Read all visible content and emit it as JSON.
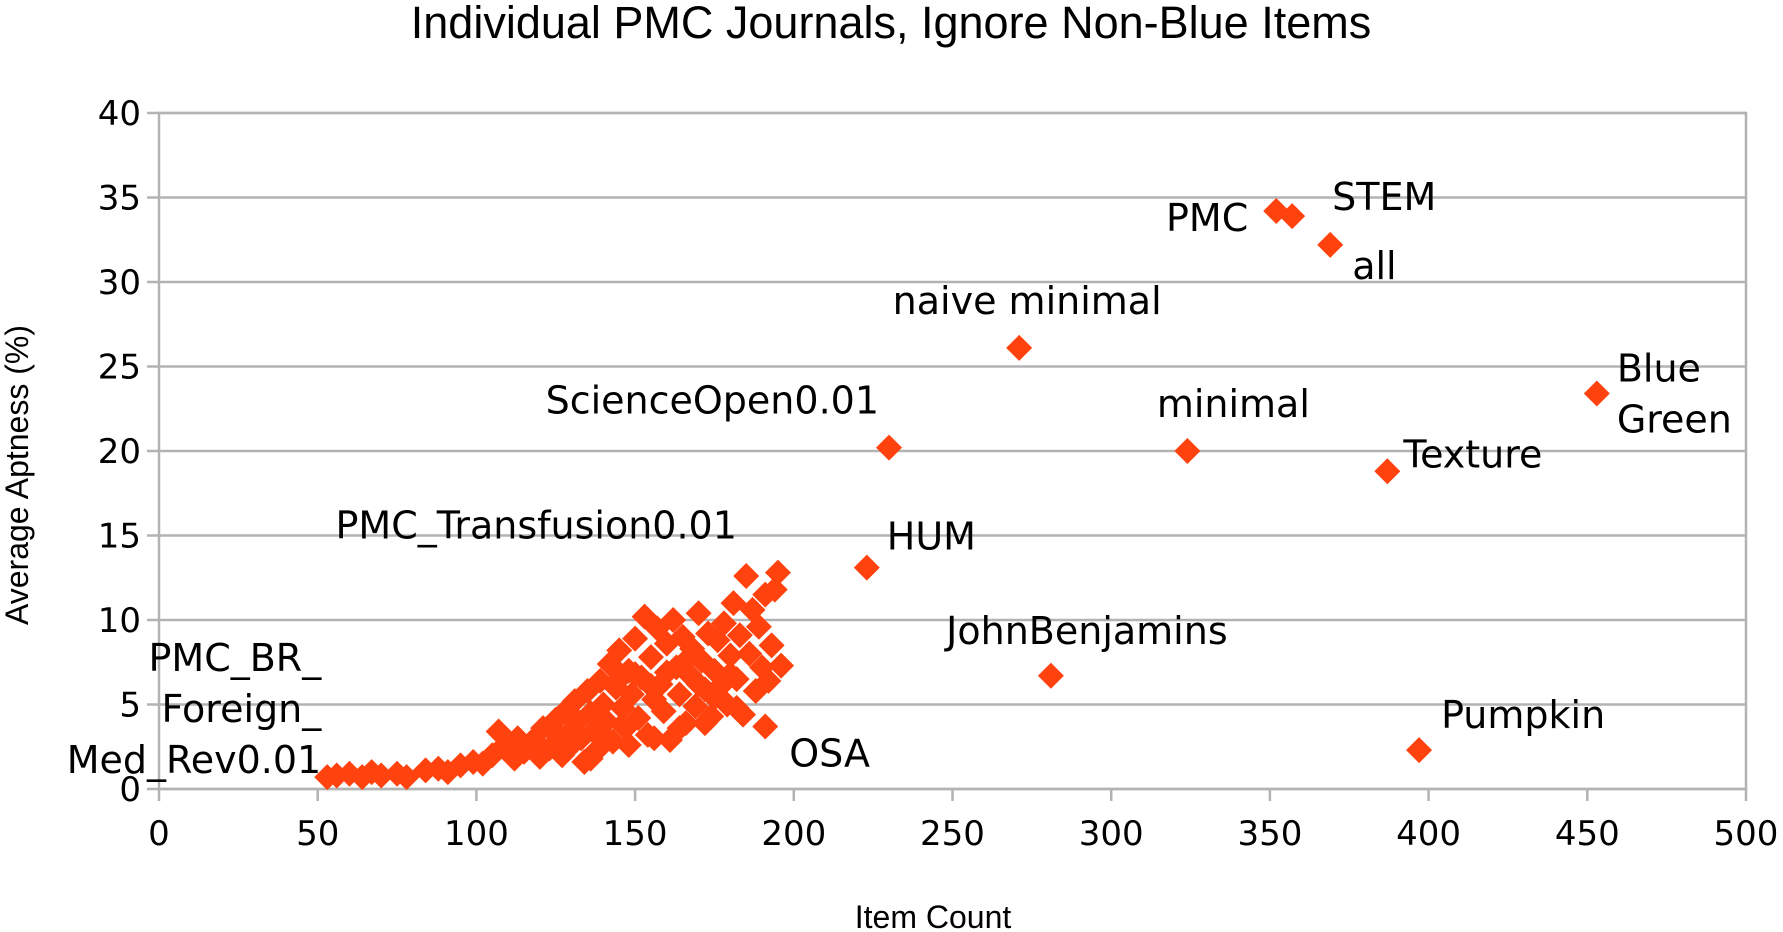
{
  "chart_data": {
    "type": "scatter",
    "title": "Individual PMC Journals, Ignore Non-Blue Items",
    "xlabel": "Item Count",
    "ylabel": "Average Aptness (%)",
    "xlim": [
      0,
      500
    ],
    "ylim": [
      0,
      40
    ],
    "x_ticks": [
      "0",
      "50",
      "100",
      "150",
      "200",
      "250",
      "300",
      "350",
      "400",
      "450",
      "500"
    ],
    "y_ticks": [
      "0",
      "5",
      "10",
      "15",
      "20",
      "25",
      "30",
      "35",
      "40"
    ],
    "grid": true,
    "legend": "none",
    "marker": "diamond",
    "color": "#ff420e",
    "labeled_points": [
      {
        "label": "PMC",
        "x": 352,
        "y": 34.2
      },
      {
        "label": "STEM",
        "x": 357,
        "y": 33.9
      },
      {
        "label": "all",
        "x": 369,
        "y": 32.2
      },
      {
        "label": "naive minimal",
        "x": 271,
        "y": 26.1
      },
      {
        "label": "Blue Green",
        "x": 453,
        "y": 23.4
      },
      {
        "label": "ScienceOpen0.01",
        "x": 230,
        "y": 20.2
      },
      {
        "label": "minimal",
        "x": 324,
        "y": 20.0
      },
      {
        "label": "Texture",
        "x": 387,
        "y": 18.8
      },
      {
        "label": "HUM",
        "x": 223,
        "y": 13.1
      },
      {
        "label": "PMC_Transfusion0.01",
        "x": 195,
        "y": 12.8
      },
      {
        "label": "JohnBenjamins",
        "x": 281,
        "y": 6.7
      },
      {
        "label": "OSA",
        "x": 191,
        "y": 3.7
      },
      {
        "label": "Pumpkin",
        "x": 397,
        "y": 2.3
      },
      {
        "label": "PMC_BR_ Foreign_ Med_Rev0.01",
        "x": 53,
        "y": 0.7
      }
    ],
    "labels_lines": {
      "Blue Green": [
        "Blue",
        "Green"
      ],
      "PMC_BR_ Foreign_ Med_Rev0.01": [
        "PMC_BR_",
        "Foreign_",
        "Med_Rev0.01"
      ]
    },
    "cluster_points": [
      {
        "x": 56,
        "y": 0.8
      },
      {
        "x": 60,
        "y": 0.9
      },
      {
        "x": 64,
        "y": 0.7
      },
      {
        "x": 67,
        "y": 1.0
      },
      {
        "x": 70,
        "y": 0.8
      },
      {
        "x": 75,
        "y": 0.9
      },
      {
        "x": 78,
        "y": 0.7
      },
      {
        "x": 84,
        "y": 1.1
      },
      {
        "x": 88,
        "y": 1.2
      },
      {
        "x": 91,
        "y": 1.0
      },
      {
        "x": 95,
        "y": 1.4
      },
      {
        "x": 99,
        "y": 1.6
      },
      {
        "x": 102,
        "y": 1.5
      },
      {
        "x": 105,
        "y": 2.0
      },
      {
        "x": 107,
        "y": 3.4
      },
      {
        "x": 109,
        "y": 2.6
      },
      {
        "x": 112,
        "y": 1.8
      },
      {
        "x": 113,
        "y": 3.0
      },
      {
        "x": 115,
        "y": 2.2
      },
      {
        "x": 118,
        "y": 2.9
      },
      {
        "x": 120,
        "y": 1.9
      },
      {
        "x": 121,
        "y": 3.6
      },
      {
        "x": 123,
        "y": 2.4
      },
      {
        "x": 125,
        "y": 4.1
      },
      {
        "x": 126,
        "y": 3.1
      },
      {
        "x": 127,
        "y": 2.0
      },
      {
        "x": 128,
        "y": 4.6
      },
      {
        "x": 129,
        "y": 3.3
      },
      {
        "x": 130,
        "y": 2.6
      },
      {
        "x": 131,
        "y": 5.2
      },
      {
        "x": 132,
        "y": 4.0
      },
      {
        "x": 133,
        "y": 3.0
      },
      {
        "x": 134,
        "y": 1.6
      },
      {
        "x": 135,
        "y": 5.8
      },
      {
        "x": 136,
        "y": 4.5
      },
      {
        "x": 137,
        "y": 3.4
      },
      {
        "x": 138,
        "y": 2.3
      },
      {
        "x": 139,
        "y": 6.4
      },
      {
        "x": 140,
        "y": 5.0
      },
      {
        "x": 141,
        "y": 4.0
      },
      {
        "x": 142,
        "y": 7.4
      },
      {
        "x": 143,
        "y": 2.8
      },
      {
        "x": 144,
        "y": 6.0
      },
      {
        "x": 145,
        "y": 8.2
      },
      {
        "x": 146,
        "y": 4.8
      },
      {
        "x": 147,
        "y": 3.6
      },
      {
        "x": 148,
        "y": 7.0
      },
      {
        "x": 149,
        "y": 5.6
      },
      {
        "x": 150,
        "y": 8.9
      },
      {
        "x": 151,
        "y": 4.2
      },
      {
        "x": 152,
        "y": 6.6
      },
      {
        "x": 153,
        "y": 10.2
      },
      {
        "x": 154,
        "y": 3.2
      },
      {
        "x": 155,
        "y": 7.8
      },
      {
        "x": 156,
        "y": 5.3
      },
      {
        "x": 157,
        "y": 9.5
      },
      {
        "x": 158,
        "y": 6.2
      },
      {
        "x": 159,
        "y": 4.6
      },
      {
        "x": 160,
        "y": 8.6
      },
      {
        "x": 161,
        "y": 2.9
      },
      {
        "x": 162,
        "y": 10.0
      },
      {
        "x": 163,
        "y": 7.2
      },
      {
        "x": 164,
        "y": 5.6
      },
      {
        "x": 165,
        "y": 9.0
      },
      {
        "x": 166,
        "y": 3.9
      },
      {
        "x": 167,
        "y": 6.8
      },
      {
        "x": 168,
        "y": 8.3
      },
      {
        "x": 169,
        "y": 4.9
      },
      {
        "x": 170,
        "y": 10.4
      },
      {
        "x": 171,
        "y": 7.6
      },
      {
        "x": 172,
        "y": 5.9
      },
      {
        "x": 173,
        "y": 9.2
      },
      {
        "x": 174,
        "y": 4.3
      },
      {
        "x": 175,
        "y": 7.0
      },
      {
        "x": 176,
        "y": 8.8
      },
      {
        "x": 177,
        "y": 6.1
      },
      {
        "x": 178,
        "y": 9.8
      },
      {
        "x": 179,
        "y": 5.0
      },
      {
        "x": 180,
        "y": 7.9
      },
      {
        "x": 181,
        "y": 11.0
      },
      {
        "x": 182,
        "y": 6.5
      },
      {
        "x": 183,
        "y": 9.1
      },
      {
        "x": 184,
        "y": 4.4
      },
      {
        "x": 185,
        "y": 12.6
      },
      {
        "x": 186,
        "y": 8.0
      },
      {
        "x": 187,
        "y": 10.6
      },
      {
        "x": 188,
        "y": 5.8
      },
      {
        "x": 189,
        "y": 9.6
      },
      {
        "x": 190,
        "y": 7.2
      },
      {
        "x": 191,
        "y": 11.5
      },
      {
        "x": 192,
        "y": 6.4
      },
      {
        "x": 193,
        "y": 8.5
      },
      {
        "x": 194,
        "y": 11.8
      },
      {
        "x": 196,
        "y": 7.3
      },
      {
        "x": 145,
        "y": 6.5
      },
      {
        "x": 150,
        "y": 6.8
      },
      {
        "x": 155,
        "y": 6.1
      },
      {
        "x": 160,
        "y": 6.9
      },
      {
        "x": 165,
        "y": 7.4
      },
      {
        "x": 170,
        "y": 6.2
      },
      {
        "x": 175,
        "y": 5.4
      },
      {
        "x": 180,
        "y": 6.8
      },
      {
        "x": 140,
        "y": 3.2
      },
      {
        "x": 148,
        "y": 2.6
      },
      {
        "x": 156,
        "y": 3.0
      },
      {
        "x": 164,
        "y": 3.6
      },
      {
        "x": 172,
        "y": 3.9
      },
      {
        "x": 182,
        "y": 4.8
      },
      {
        "x": 136,
        "y": 1.8
      },
      {
        "x": 146,
        "y": 3.8
      }
    ]
  }
}
